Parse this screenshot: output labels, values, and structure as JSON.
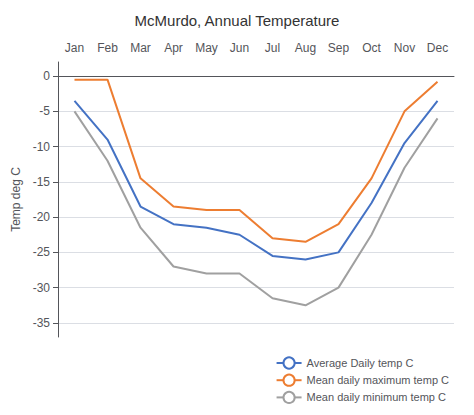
{
  "chart_data": {
    "type": "line",
    "title": "McMurdo, Annual Temperature",
    "categories": [
      "Jan",
      "Feb",
      "Mar",
      "Apr",
      "May",
      "Jun",
      "Jul",
      "Aug",
      "Sep",
      "Oct",
      "Nov",
      "Dec"
    ],
    "series": [
      {
        "name": "Average Daily temp C",
        "color": "#4472C4",
        "values": [
          -3.5,
          -9.0,
          -18.5,
          -21.0,
          -21.5,
          -22.5,
          -25.5,
          -26.0,
          -25.0,
          -18.0,
          -9.5,
          -3.5
        ]
      },
      {
        "name": "Mean daily maximum temp C",
        "color": "#ED7D31",
        "values": [
          -0.5,
          -0.5,
          -14.5,
          -18.5,
          -19.0,
          -19.0,
          -23.0,
          -23.5,
          -21.0,
          -14.5,
          -5.0,
          -0.8
        ]
      },
      {
        "name": "Mean daily minimum temp C",
        "color": "#A0A0A0",
        "values": [
          -5.0,
          -12.0,
          -21.5,
          -27.0,
          -28.0,
          -28.0,
          -31.5,
          -32.5,
          -30.0,
          -22.5,
          -13.0,
          -6.0
        ]
      }
    ],
    "ylabel": "Temp deg C",
    "ylim": [
      -37,
      2
    ],
    "yticks": [
      0,
      -5,
      -10,
      -15,
      -20,
      -25,
      -30,
      -35
    ],
    "grid": true,
    "legend": "lower right"
  }
}
